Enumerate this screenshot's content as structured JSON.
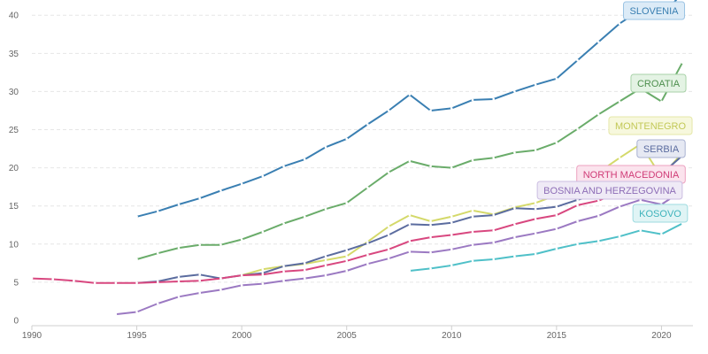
{
  "chart_data": {
    "type": "line",
    "title": "",
    "xlabel": "",
    "ylabel": "",
    "xlim": [
      1990,
      2021.5
    ],
    "ylim": [
      0,
      42
    ],
    "x_ticks": [
      "1990",
      "1995",
      "2000",
      "2005",
      "2010",
      "2015",
      "2020"
    ],
    "y_ticks": [
      "0",
      "5",
      "10",
      "15",
      "20",
      "25",
      "30",
      "35",
      "40"
    ],
    "grid": "horizontal",
    "legend": "inline labels at line ends",
    "series": [
      {
        "name": "SLOVENIA",
        "color": "#3a7fb2",
        "x": [
          1995,
          1996,
          1997,
          1998,
          1999,
          2000,
          2001,
          2002,
          2003,
          2004,
          2005,
          2006,
          2007,
          2008,
          2009,
          2010,
          2011,
          2012,
          2013,
          2014,
          2015,
          2016,
          2017,
          2018,
          2019,
          2020,
          2021
        ],
        "y": [
          13.6,
          14.3,
          15.2,
          16.0,
          17.0,
          17.9,
          18.9,
          20.2,
          21.1,
          22.7,
          23.8,
          25.7,
          27.5,
          29.6,
          27.5,
          27.8,
          28.9,
          29.0,
          30.0,
          30.9,
          31.7,
          34.1,
          36.5,
          38.9,
          40.7,
          39.7,
          43.0
        ]
      },
      {
        "name": "CROATIA",
        "color": "#6aac6a",
        "x": [
          1995,
          1996,
          1997,
          1998,
          1999,
          2000,
          2001,
          2002,
          2003,
          2004,
          2005,
          2006,
          2007,
          2008,
          2009,
          2010,
          2011,
          2012,
          2013,
          2014,
          2015,
          2016,
          2017,
          2018,
          2019,
          2020,
          2021
        ],
        "y": [
          8.0,
          8.8,
          9.5,
          9.9,
          9.9,
          10.6,
          11.6,
          12.7,
          13.6,
          14.6,
          15.4,
          17.4,
          19.4,
          20.9,
          20.2,
          20.0,
          21.0,
          21.3,
          22.0,
          22.3,
          23.3,
          25.1,
          27.0,
          28.7,
          30.4,
          28.7,
          33.8
        ]
      },
      {
        "name": "MONTENEGRO",
        "color": "#d4d96a",
        "x": [
          2000,
          2001,
          2002,
          2003,
          2004,
          2005,
          2006,
          2007,
          2008,
          2009,
          2010,
          2011,
          2012,
          2013,
          2014,
          2015,
          2016,
          2017,
          2018,
          2019,
          2020,
          2021
        ],
        "y": [
          5.9,
          6.7,
          7.1,
          7.4,
          7.9,
          8.4,
          10.3,
          12.3,
          13.8,
          13.0,
          13.6,
          14.4,
          13.9,
          14.8,
          15.4,
          16.4,
          17.8,
          19.4,
          21.3,
          23.1,
          18.8,
          22.0
        ]
      },
      {
        "name": "SERBIA",
        "color": "#5b6c9f",
        "x": [
          1995,
          1996,
          1997,
          1998,
          1999,
          2000,
          2001,
          2002,
          2003,
          2004,
          2005,
          2006,
          2007,
          2008,
          2009,
          2010,
          2011,
          2012,
          2013,
          2014,
          2015,
          2016,
          2017,
          2018,
          2019,
          2020,
          2021
        ],
        "y": [
          4.9,
          5.1,
          5.7,
          6.0,
          5.5,
          5.9,
          6.2,
          7.1,
          7.5,
          8.4,
          9.2,
          10.1,
          11.2,
          12.6,
          12.5,
          12.8,
          13.6,
          13.8,
          14.7,
          14.6,
          14.9,
          15.8,
          16.5,
          17.7,
          19.0,
          19.2,
          21.6
        ]
      },
      {
        "name": "NORTH MACEDONIA",
        "color": "#d8477f",
        "x": [
          1990,
          1991,
          1992,
          1993,
          1994,
          1995,
          1996,
          1997,
          1998,
          1999,
          2000,
          2001,
          2002,
          2003,
          2004,
          2005,
          2006,
          2007,
          2008,
          2009,
          2010,
          2011,
          2012,
          2013,
          2014,
          2015,
          2016,
          2017,
          2018,
          2019,
          2020,
          2021
        ],
        "y": [
          5.5,
          5.4,
          5.2,
          4.9,
          4.9,
          4.9,
          5.0,
          5.1,
          5.2,
          5.5,
          5.9,
          6.0,
          6.4,
          6.6,
          7.2,
          7.8,
          8.6,
          9.3,
          10.4,
          10.9,
          11.2,
          11.6,
          11.8,
          12.6,
          13.3,
          13.8,
          15.1,
          15.7,
          16.8,
          17.6,
          17.0,
          19.0
        ]
      },
      {
        "name": "BOSNIA AND HERZEGOVINA",
        "color": "#9b79c2",
        "x": [
          1994,
          1995,
          1996,
          1997,
          1998,
          1999,
          2000,
          2001,
          2002,
          2003,
          2004,
          2005,
          2006,
          2007,
          2008,
          2009,
          2010,
          2011,
          2012,
          2013,
          2014,
          2015,
          2016,
          2017,
          2018,
          2019,
          2020,
          2021
        ],
        "y": [
          0.8,
          1.1,
          2.2,
          3.1,
          3.6,
          4.0,
          4.6,
          4.8,
          5.2,
          5.5,
          5.9,
          6.5,
          7.4,
          8.1,
          9.0,
          8.9,
          9.3,
          9.9,
          10.2,
          10.9,
          11.4,
          12.0,
          13.0,
          13.7,
          14.9,
          15.8,
          15.2,
          17.0
        ]
      },
      {
        "name": "KOSOVO",
        "color": "#4fc0c8",
        "x": [
          2008,
          2009,
          2010,
          2011,
          2012,
          2013,
          2014,
          2015,
          2016,
          2017,
          2018,
          2019,
          2020,
          2021
        ],
        "y": [
          6.5,
          6.8,
          7.2,
          7.8,
          8.0,
          8.4,
          8.7,
          9.4,
          10.0,
          10.4,
          11.0,
          11.8,
          11.3,
          12.7
        ]
      }
    ],
    "labels": [
      {
        "text": "SLOVENIA",
        "series": "SLOVENIA",
        "border": "#9cc4e4",
        "fill": "#dcebf7",
        "color": "#3a7fb2"
      },
      {
        "text": "CROATIA",
        "series": "CROATIA",
        "border": "#a8d2a8",
        "fill": "#e4f3e4",
        "color": "#4d8f4d"
      },
      {
        "text": "MONTENEGRO",
        "series": "MONTENEGRO",
        "border": "#e5e7a8",
        "fill": "#f7f8dd",
        "color": "#c2c856"
      },
      {
        "text": "SERBIA",
        "series": "SERBIA",
        "border": "#a9b2d2",
        "fill": "#e6e9f3",
        "color": "#5b6c9f"
      },
      {
        "text": "NORTH MACEDONIA",
        "series": "NORTH MACEDONIA",
        "border": "#eca1c0",
        "fill": "#fbe3ed",
        "color": "#d03c77"
      },
      {
        "text": "BOSNIA AND HERZEGOVINA",
        "series": "BOSNIA AND HERZEGOVINA",
        "border": "#cbbde1",
        "fill": "#efeaf6",
        "color": "#8d6db6"
      },
      {
        "text": "KOSOVO",
        "series": "KOSOVO",
        "border": "#9edbe0",
        "fill": "#e0f4f5",
        "color": "#3fb3bc"
      }
    ]
  }
}
